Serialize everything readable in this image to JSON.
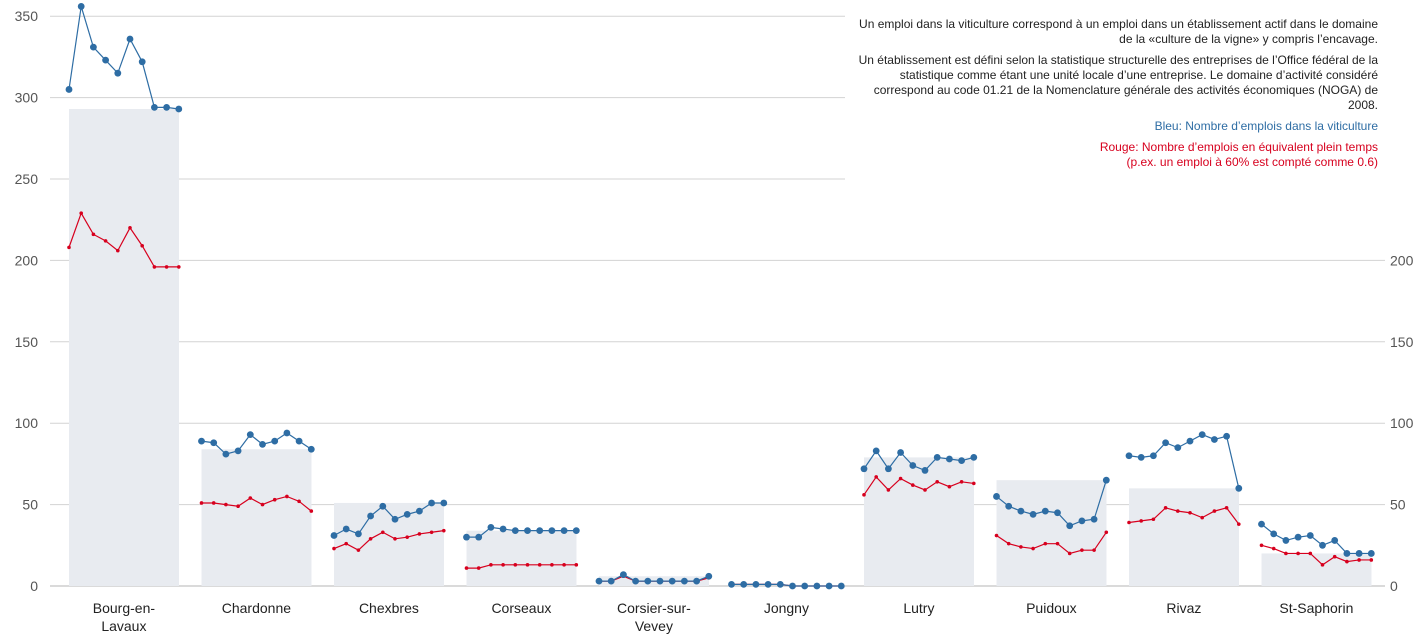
{
  "notes": {
    "paragraph_1": "Un emploi dans la viticulture correspond à un emploi dans un établissement actif dans le domaine de la «culture de la vigne» y compris l’encavage.",
    "paragraph_2": "Un établissement est défini selon la statistique structurelle des entreprises de l’Office fédéral de la statistique comme étant une unité locale d’une entreprise. Le domaine d’activité considéré correspond au code 01.21 de la Nomenclature générale des activités économiques (NOGA) de 2008.",
    "legend_blue": "Bleu:  Nombre d’emplois dans la viticulture",
    "legend_red_line1": "Rouge: Nombre d’emplois en équivalent plein temps",
    "legend_red_line2": "(p.ex. un emploi à 60% est compté comme 0.6)"
  },
  "chart_data": {
    "type": "line",
    "ylim": [
      0,
      360
    ],
    "y_ticks_left": [
      0,
      50,
      100,
      150,
      200,
      250,
      300,
      350
    ],
    "y_ticks_right": [
      0,
      50,
      100,
      150,
      200
    ],
    "grid": true,
    "colors": {
      "blue": "#2e6da4",
      "red": "#d7001e",
      "band": "#e8ebf0"
    },
    "groups": [
      {
        "name": "Bourg-en-Lavaux",
        "label_lines": [
          "Bourg-en-",
          "Lavaux"
        ],
        "blue": [
          305,
          356,
          331,
          323,
          315,
          336,
          322,
          294,
          294,
          293
        ],
        "red": [
          208,
          229,
          216,
          212,
          206,
          220,
          209,
          196,
          196,
          196
        ]
      },
      {
        "name": "Chardonne",
        "label_lines": [
          "Chardonne"
        ],
        "blue": [
          89,
          88,
          81,
          83,
          93,
          87,
          89,
          94,
          89,
          84
        ],
        "red": [
          51,
          51,
          50,
          49,
          54,
          50,
          53,
          55,
          52,
          46
        ]
      },
      {
        "name": "Chexbres",
        "label_lines": [
          "Chexbres"
        ],
        "blue": [
          31,
          35,
          32,
          43,
          49,
          41,
          44,
          46,
          51,
          51
        ],
        "red": [
          23,
          26,
          22,
          29,
          33,
          29,
          30,
          32,
          33,
          34
        ]
      },
      {
        "name": "Corseaux",
        "label_lines": [
          "Corseaux"
        ],
        "blue": [
          30,
          30,
          36,
          35,
          34,
          34,
          34,
          34,
          34,
          34
        ],
        "red": [
          11,
          11,
          13,
          13,
          13,
          13,
          13,
          13,
          13,
          13
        ]
      },
      {
        "name": "Corsier-sur-Vevey",
        "label_lines": [
          "Corsier-sur-",
          "Vevey"
        ],
        "blue": [
          3,
          3,
          7,
          3,
          3,
          3,
          3,
          3,
          3,
          6
        ],
        "red": [
          3,
          3,
          6,
          3,
          3,
          3,
          3,
          3,
          3,
          5
        ]
      },
      {
        "name": "Jongny",
        "label_lines": [
          "Jongny"
        ],
        "blue": [
          1,
          1,
          1,
          1,
          1,
          0,
          0,
          0,
          0,
          0
        ],
        "red": [
          1,
          1,
          1,
          1,
          1,
          0,
          0,
          0,
          0,
          0
        ]
      },
      {
        "name": "Lutry",
        "label_lines": [
          "Lutry"
        ],
        "blue": [
          72,
          83,
          72,
          82,
          74,
          71,
          79,
          78,
          77,
          79
        ],
        "red": [
          56,
          67,
          59,
          66,
          62,
          59,
          64,
          61,
          64,
          63
        ]
      },
      {
        "name": "Puidoux",
        "label_lines": [
          "Puidoux"
        ],
        "blue": [
          55,
          49,
          46,
          44,
          46,
          45,
          37,
          40,
          41,
          65
        ],
        "red": [
          31,
          26,
          24,
          23,
          26,
          26,
          20,
          22,
          22,
          33
        ]
      },
      {
        "name": "Rivaz",
        "label_lines": [
          "Rivaz"
        ],
        "blue": [
          80,
          79,
          80,
          88,
          85,
          89,
          93,
          90,
          92,
          60
        ],
        "red": [
          39,
          40,
          41,
          48,
          46,
          45,
          42,
          46,
          48,
          38
        ]
      },
      {
        "name": "St-Saphorin",
        "label_lines": [
          "St-Saphorin"
        ],
        "blue": [
          38,
          32,
          28,
          30,
          31,
          25,
          28,
          20,
          20,
          20
        ],
        "red": [
          25,
          23,
          20,
          20,
          20,
          13,
          18,
          15,
          16,
          16
        ]
      }
    ]
  }
}
